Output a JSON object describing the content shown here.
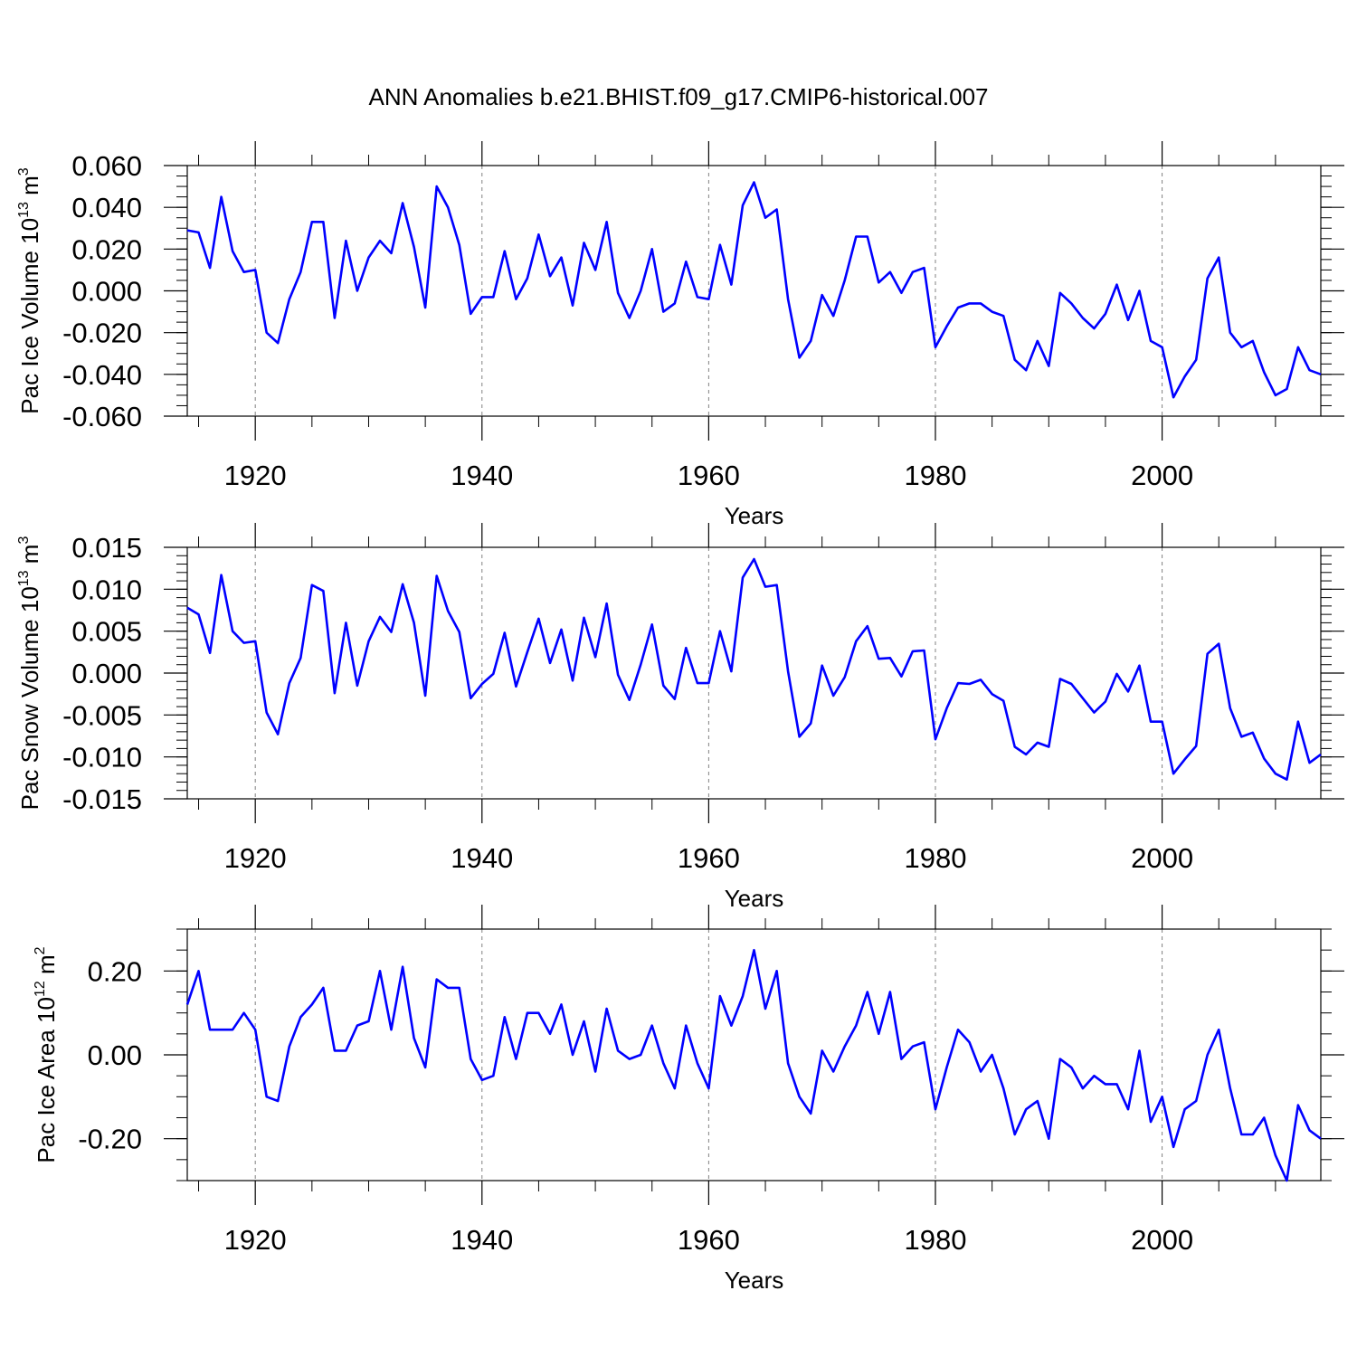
{
  "title": "ANN Anomalies b.e21.BHIST.f09_g17.CMIP6-historical.007",
  "colors": {
    "series": "#0000ff",
    "axis": "#000000",
    "refline": "#808080"
  },
  "chart_data": [
    {
      "type": "line",
      "ylabel": "Pac Ice Volume 10",
      "ylabel_sup": "13",
      "ylabel_unit": "m",
      "ylabel_unit_sup": "3",
      "xlabel": "Years",
      "xlim": [
        1914,
        2014
      ],
      "ylim": [
        -0.06,
        0.06
      ],
      "yticks": [
        -0.06,
        -0.04,
        -0.02,
        0.0,
        0.02,
        0.04,
        0.06
      ],
      "ytick_labels": [
        "-0.060",
        "-0.040",
        "-0.020",
        "0.000",
        "0.020",
        "0.040",
        "0.060"
      ],
      "yminor_step": 0.005,
      "xticks": [
        1920,
        1940,
        1960,
        1980,
        2000
      ],
      "xtick_labels": [
        "1920",
        "1940",
        "1960",
        "1980",
        "2000"
      ],
      "grid_x": true,
      "series": [
        {
          "x_start": 1914,
          "values": [
            0.029,
            0.028,
            0.011,
            0.045,
            0.019,
            0.009,
            0.01,
            -0.02,
            -0.025,
            -0.004,
            0.009,
            0.033,
            0.033,
            -0.013,
            0.024,
            0.0,
            0.016,
            0.024,
            0.018,
            0.042,
            0.021,
            -0.008,
            0.05,
            0.04,
            0.022,
            -0.011,
            -0.003,
            -0.003,
            0.019,
            -0.004,
            0.006,
            0.027,
            0.007,
            0.016,
            -0.007,
            0.023,
            0.01,
            0.033,
            -0.001,
            -0.013,
            0.0,
            0.02,
            -0.01,
            -0.006,
            0.014,
            -0.003,
            -0.004,
            0.022,
            0.003,
            0.041,
            0.052,
            0.035,
            0.039,
            -0.004,
            -0.032,
            -0.024,
            -0.002,
            -0.012,
            0.005,
            0.026,
            0.026,
            0.004,
            0.009,
            -0.001,
            0.009,
            0.011,
            -0.027,
            -0.017,
            -0.008,
            -0.006,
            -0.006,
            -0.01,
            -0.012,
            -0.033,
            -0.038,
            -0.024,
            -0.036,
            -0.001,
            -0.006,
            -0.013,
            -0.018,
            -0.011,
            0.003,
            -0.014,
            0.0,
            -0.024,
            -0.027,
            -0.051,
            -0.041,
            -0.033,
            0.006,
            0.016,
            -0.02,
            -0.027,
            -0.024,
            -0.039,
            -0.05,
            -0.047,
            -0.027,
            -0.038,
            -0.04
          ]
        }
      ]
    },
    {
      "type": "line",
      "ylabel": "Pac Snow Volume 10",
      "ylabel_sup": "13",
      "ylabel_unit": "m",
      "ylabel_unit_sup": "3",
      "xlabel": "Years",
      "xlim": [
        1914,
        2014
      ],
      "ylim": [
        -0.015,
        0.015
      ],
      "yticks": [
        -0.015,
        -0.01,
        -0.005,
        0.0,
        0.005,
        0.01,
        0.015
      ],
      "ytick_labels": [
        "-0.015",
        "-0.010",
        "-0.005",
        "0.000",
        "0.005",
        "0.010",
        "0.015"
      ],
      "yminor_step": 0.001,
      "xticks": [
        1920,
        1940,
        1960,
        1980,
        2000
      ],
      "xtick_labels": [
        "1920",
        "1940",
        "1960",
        "1980",
        "2000"
      ],
      "grid_x": true,
      "series": [
        {
          "x_start": 1914,
          "values": [
            0.0078,
            0.007,
            0.0024,
            0.0117,
            0.005,
            0.0036,
            0.0038,
            -0.0047,
            -0.0073,
            -0.0012,
            0.0018,
            0.0105,
            0.0098,
            -0.0024,
            0.006,
            -0.0015,
            0.0038,
            0.0067,
            0.0049,
            0.0106,
            0.006,
            -0.0027,
            0.0116,
            0.0074,
            0.0049,
            -0.003,
            -0.0013,
            -0.0001,
            0.0048,
            -0.0016,
            0.0025,
            0.0065,
            0.0012,
            0.0052,
            -0.0009,
            0.0066,
            0.0019,
            0.0083,
            -0.0002,
            -0.0032,
            0.001,
            0.0058,
            -0.0015,
            -0.0031,
            0.003,
            -0.0012,
            -0.0012,
            0.005,
            0.0002,
            0.0114,
            0.0136,
            0.0103,
            0.0105,
            0.0002,
            -0.0076,
            -0.006,
            0.0009,
            -0.0027,
            -0.0005,
            0.0038,
            0.0056,
            0.0017,
            0.0018,
            -0.0004,
            0.0026,
            0.0027,
            -0.0079,
            -0.0042,
            -0.0012,
            -0.0013,
            -0.0008,
            -0.0025,
            -0.0033,
            -0.0088,
            -0.0097,
            -0.0083,
            -0.0088,
            -0.0007,
            -0.0013,
            -0.003,
            -0.0047,
            -0.0034,
            -0.0001,
            -0.0022,
            0.0009,
            -0.0058,
            -0.0058,
            -0.012,
            -0.0103,
            -0.0087,
            0.0023,
            0.0035,
            -0.0042,
            -0.0076,
            -0.0071,
            -0.0102,
            -0.012,
            -0.0127,
            -0.0058,
            -0.0107,
            -0.0097
          ]
        }
      ]
    },
    {
      "type": "line",
      "ylabel": "Pac Ice Area 10",
      "ylabel_sup": "12",
      "ylabel_unit": "m",
      "ylabel_unit_sup": "2",
      "xlabel": "Years",
      "xlim": [
        1914,
        2014
      ],
      "ylim": [
        -0.3,
        0.3
      ],
      "yticks": [
        -0.2,
        0.0,
        0.2
      ],
      "ytick_labels": [
        "-0.20",
        "0.00",
        "0.20"
      ],
      "yminor_step": 0.05,
      "xticks": [
        1920,
        1940,
        1960,
        1980,
        2000
      ],
      "xtick_labels": [
        "1920",
        "1940",
        "1960",
        "1980",
        "2000"
      ],
      "grid_x": true,
      "series": [
        {
          "x_start": 1914,
          "values": [
            0.12,
            0.2,
            0.06,
            0.06,
            0.06,
            0.1,
            0.06,
            -0.1,
            -0.11,
            0.02,
            0.09,
            0.12,
            0.16,
            0.01,
            0.01,
            0.07,
            0.08,
            0.2,
            0.06,
            0.21,
            0.04,
            -0.03,
            0.18,
            0.16,
            0.16,
            -0.01,
            -0.06,
            -0.05,
            0.09,
            -0.01,
            0.1,
            0.1,
            0.05,
            0.12,
            0.0,
            0.08,
            -0.04,
            0.11,
            0.01,
            -0.01,
            0.0,
            0.07,
            -0.02,
            -0.08,
            0.07,
            -0.02,
            -0.08,
            0.14,
            0.07,
            0.14,
            0.25,
            0.11,
            0.2,
            -0.02,
            -0.1,
            -0.14,
            0.01,
            -0.04,
            0.02,
            0.07,
            0.15,
            0.05,
            0.15,
            -0.01,
            0.02,
            0.03,
            -0.13,
            -0.03,
            0.06,
            0.03,
            -0.04,
            0.0,
            -0.08,
            -0.19,
            -0.13,
            -0.11,
            -0.2,
            -0.01,
            -0.03,
            -0.08,
            -0.05,
            -0.07,
            -0.07,
            -0.13,
            0.01,
            -0.16,
            -0.1,
            -0.22,
            -0.13,
            -0.11,
            0.0,
            0.06,
            -0.08,
            -0.19,
            -0.19,
            -0.15,
            -0.24,
            -0.3,
            -0.12,
            -0.18,
            -0.2
          ]
        }
      ]
    }
  ]
}
